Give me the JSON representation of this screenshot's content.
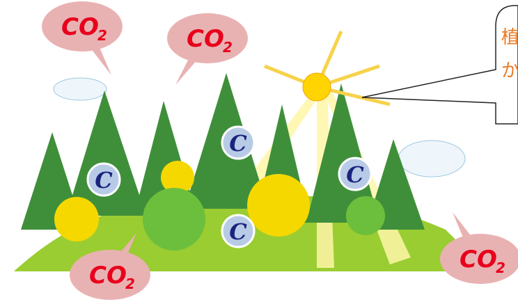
{
  "co2_bubbles": [
    {
      "text": "CO",
      "sub": "2"
    },
    {
      "text": "CO",
      "sub": "2"
    },
    {
      "text": "CO",
      "sub": "2"
    },
    {
      "text": "CO",
      "sub": "2"
    }
  ],
  "carbon_markers": [
    "C",
    "C",
    "C",
    "C"
  ],
  "callout": {
    "lines": [
      "植",
      "か"
    ]
  }
}
